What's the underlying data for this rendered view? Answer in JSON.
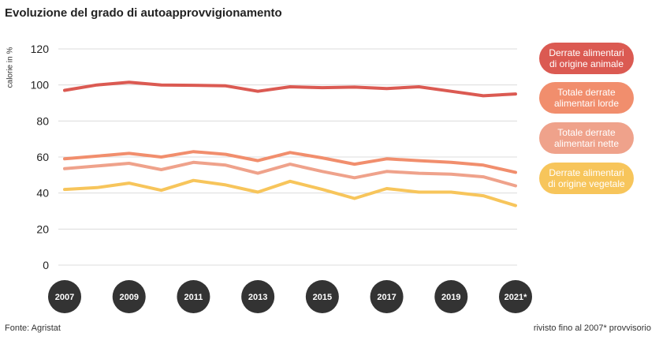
{
  "title": "Evoluzione del grado di autoapprovvigionamento",
  "ylabel": "calorie in %",
  "source": "Fonte: Agristat",
  "note": "rivisto fino al 2007* provvisorio",
  "chart_data": {
    "type": "line",
    "ylim": [
      0,
      120
    ],
    "yticks": [
      "0",
      "20",
      "40",
      "60",
      "80",
      "100",
      "120"
    ],
    "grid": true,
    "legend_position": "right",
    "x": [
      2007,
      2008,
      2009,
      2010,
      2011,
      2012,
      2013,
      2014,
      2015,
      2016,
      2017,
      2018,
      2019,
      2020,
      2021
    ],
    "xtick_labels": [
      "2007",
      "2009",
      "2011",
      "2013",
      "2015",
      "2017",
      "2019",
      "2021*"
    ],
    "series": [
      {
        "name": "Derrate alimentari di origine animale",
        "color": "#db5a52",
        "values": [
          97,
          100,
          101.5,
          100,
          99.8,
          99.5,
          96.5,
          99,
          98.5,
          98.8,
          98,
          99,
          96.5,
          94,
          95
        ]
      },
      {
        "name": "Totale derrate alimentari lorde",
        "color": "#f18e6d",
        "values": [
          59,
          60.5,
          62,
          60,
          63,
          61.5,
          58,
          62.5,
          59.5,
          56,
          59,
          58,
          57,
          55.5,
          51.5
        ]
      },
      {
        "name": "Totale derrate alimentari nette",
        "color": "#efa28b",
        "values": [
          53.5,
          55,
          56.5,
          53,
          57,
          55.5,
          51,
          56,
          52,
          48.5,
          52,
          51,
          50.5,
          49,
          44
        ]
      },
      {
        "name": "Derrate alimentari di origine vegetale",
        "color": "#f7c55b",
        "values": [
          42,
          43,
          45.5,
          41.5,
          47,
          44.5,
          40.5,
          46.5,
          42,
          37,
          42.5,
          40.5,
          40.5,
          38.5,
          33
        ]
      }
    ]
  },
  "legend": [
    {
      "line1": "Derrate alimentari",
      "line2": "di origine animale",
      "color": "#db5a52"
    },
    {
      "line1": "Totale derrate",
      "line2": "alimentari lorde",
      "color": "#f18e6d"
    },
    {
      "line1": "Totale derrate",
      "line2": "alimentari nette",
      "color": "#efa28b"
    },
    {
      "line1": "Derrate alimentari",
      "line2": "di origine vegetale",
      "color": "#f7c55b"
    }
  ],
  "xtick_bubble_color": "#333333"
}
